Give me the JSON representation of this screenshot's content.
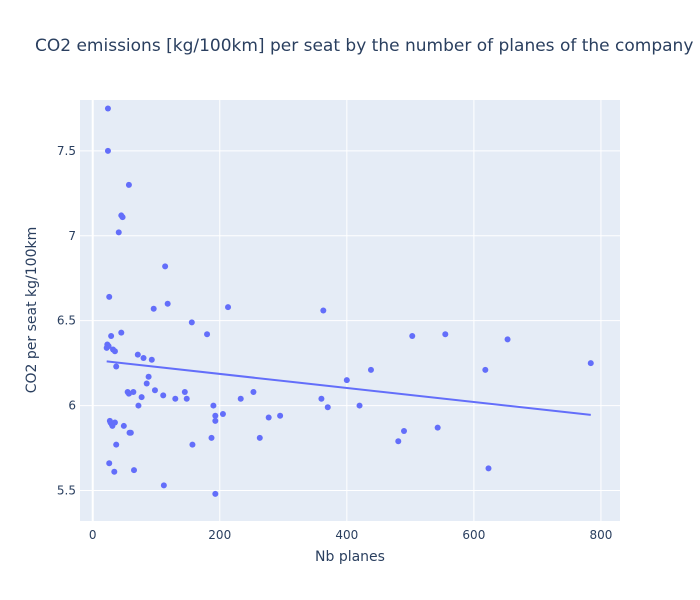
{
  "chart_data": {
    "type": "scatter",
    "title": "CO2 emissions [kg/100km] per seat by the number of planes of the company",
    "xlabel": "Nb planes",
    "ylabel": "CO2 per seat kg/100km",
    "xlim": [
      -20,
      830
    ],
    "ylim": [
      5.32,
      7.8
    ],
    "xticks": [
      0,
      200,
      400,
      600,
      800
    ],
    "xtick_labels": [
      "0",
      "200",
      "400",
      "600",
      "800"
    ],
    "yticks": [
      5.5,
      6,
      6.5,
      7,
      7.5
    ],
    "ytick_labels": [
      "5.5",
      "6",
      "6.5",
      "7",
      "7.5"
    ],
    "grid": true,
    "background": "#e5ecf6",
    "marker_color": "#636efa",
    "series": [
      {
        "mode": "markers",
        "x": [
          24,
          24,
          26,
          41,
          45,
          47,
          57,
          114,
          29,
          118,
          96,
          213,
          156,
          180,
          363,
          45,
          32,
          23,
          22,
          25,
          37,
          35,
          71,
          80,
          93,
          88,
          85,
          57,
          64,
          98,
          111,
          130,
          77,
          55,
          60,
          72,
          27,
          31,
          35,
          30,
          28,
          49,
          58,
          26,
          37,
          34,
          65,
          112,
          193,
          145,
          148,
          190,
          193,
          205,
          193,
          187,
          157,
          233,
          253,
          263,
          277,
          295,
          360,
          370,
          400,
          420,
          438,
          481,
          490,
          503,
          543,
          555,
          618,
          623,
          653,
          784
        ],
        "y": [
          7.75,
          7.5,
          6.64,
          7.02,
          7.12,
          7.11,
          7.3,
          6.82,
          6.41,
          6.6,
          6.57,
          6.58,
          6.49,
          6.42,
          6.56,
          6.43,
          6.33,
          6.36,
          6.34,
          6.35,
          6.23,
          6.32,
          6.3,
          6.28,
          6.27,
          6.17,
          6.13,
          6.07,
          6.08,
          6.09,
          6.06,
          6.04,
          6.05,
          6.08,
          5.84,
          6.0,
          5.91,
          5.88,
          5.9,
          5.89,
          5.9,
          5.88,
          5.84,
          5.66,
          5.77,
          5.61,
          5.62,
          5.53,
          5.48,
          6.08,
          6.04,
          6.0,
          5.94,
          5.95,
          5.91,
          5.81,
          5.77,
          6.04,
          6.08,
          5.81,
          5.93,
          5.94,
          6.04,
          5.99,
          6.15,
          6.0,
          6.21,
          5.79,
          5.85,
          6.41,
          5.87,
          6.42,
          6.21,
          5.63,
          6.39,
          6.25
        ]
      },
      {
        "mode": "lines",
        "x": [
          22,
          784
        ],
        "y": [
          6.26,
          5.945
        ]
      }
    ]
  }
}
